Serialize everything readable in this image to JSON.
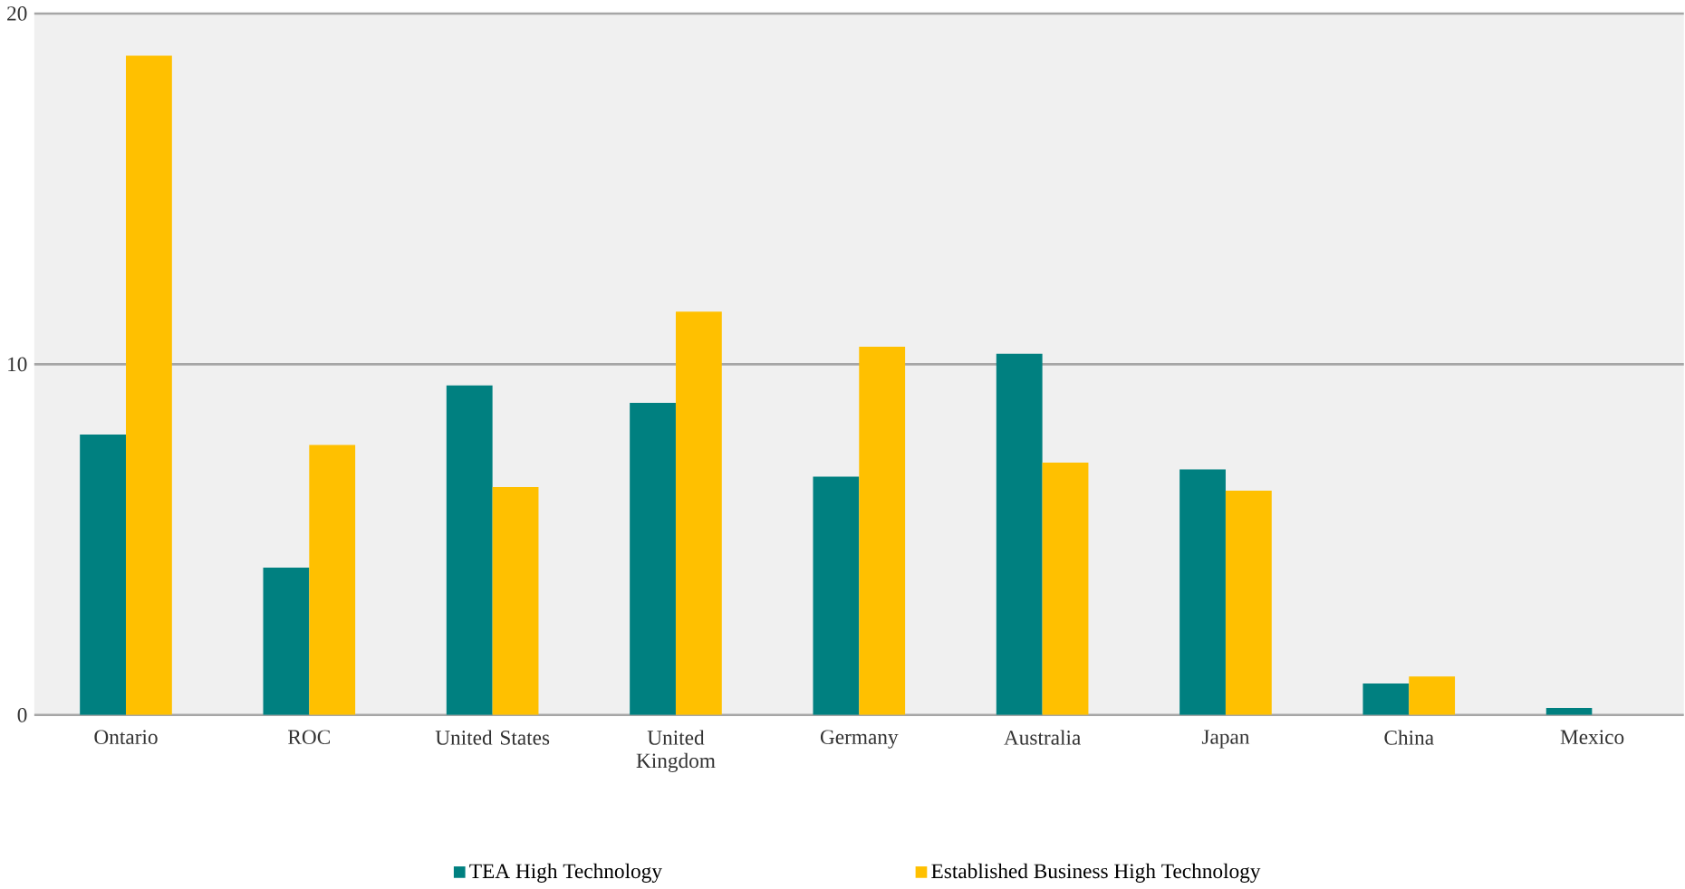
{
  "chart_data": {
    "type": "bar",
    "categories": [
      "Ontario",
      "ROC",
      "United States",
      "United Kingdom",
      "Germany",
      "Australia",
      "Japan",
      "China",
      "Mexico"
    ],
    "series": [
      {
        "name": "TEA High Technology",
        "color": "#008080",
        "values": [
          8.0,
          4.2,
          9.4,
          8.9,
          6.8,
          10.3,
          7.0,
          0.9,
          0.2
        ]
      },
      {
        "name": "Established Business High Technology",
        "color": "#ffc000",
        "values": [
          18.8,
          7.7,
          6.5,
          11.5,
          10.5,
          7.2,
          6.4,
          1.1,
          null
        ]
      }
    ],
    "ylim": [
      0,
      20
    ],
    "yticks": [
      0,
      10,
      20
    ],
    "grid": "y",
    "legend": "bottom"
  }
}
